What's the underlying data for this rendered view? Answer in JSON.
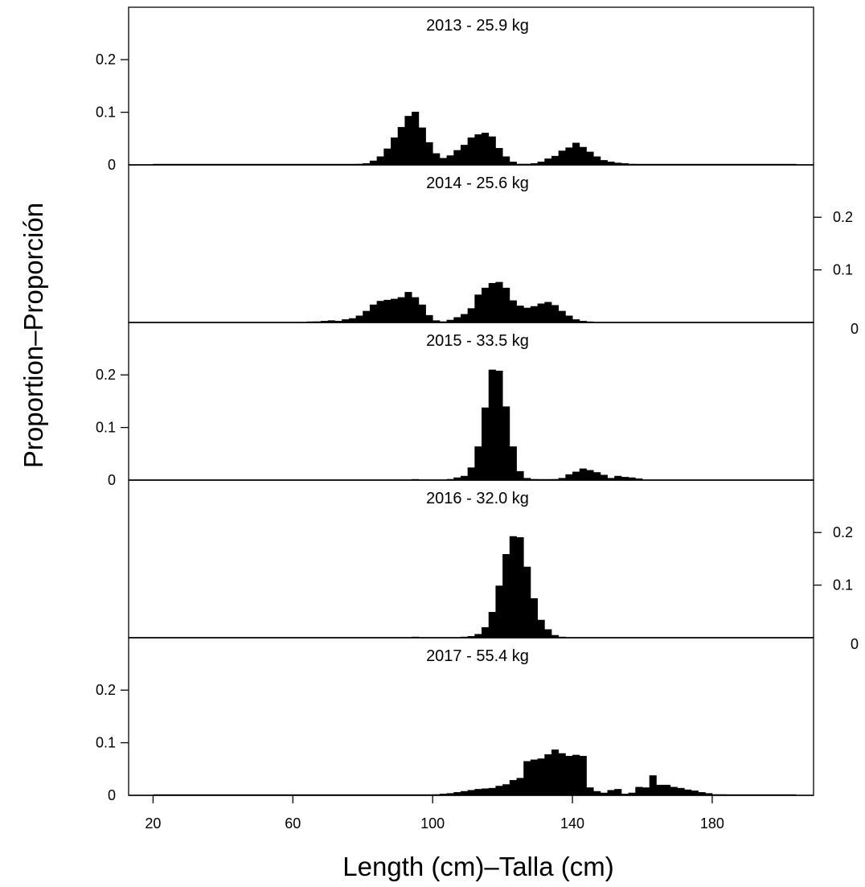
{
  "chart_data": {
    "type": "bar",
    "xlabel": "Length (cm)–Talla (cm)",
    "ylabel": "Proportion–Proporción",
    "xlim": [
      13,
      209
    ],
    "x_ticks": [
      20,
      60,
      100,
      140,
      180
    ],
    "ylim": [
      0,
      0.3
    ],
    "y_ticks": [
      {
        "value": 0,
        "label": "0"
      },
      {
        "value": 0.1,
        "label": "0.1"
      },
      {
        "value": 0.2,
        "label": "0.2"
      }
    ],
    "bin_width": 2,
    "bin_start": 20,
    "panels": [
      {
        "title": "2013 - 25.9 kg",
        "y_axis_side": "left",
        "values": [
          0.001,
          0.001,
          0.001,
          0.001,
          0.001,
          0.001,
          0.001,
          0.001,
          0.001,
          0.001,
          0.001,
          0.001,
          0.001,
          0.001,
          0.001,
          0.001,
          0.001,
          0.001,
          0.001,
          0.001,
          0.001,
          0.001,
          0.001,
          0.001,
          0.001,
          0.001,
          0.001,
          0.001,
          0.001,
          0.002,
          0.003,
          0.008,
          0.016,
          0.031,
          0.052,
          0.072,
          0.093,
          0.101,
          0.071,
          0.043,
          0.022,
          0.013,
          0.018,
          0.028,
          0.038,
          0.052,
          0.058,
          0.061,
          0.054,
          0.032,
          0.016,
          0.006,
          0.002,
          0.002,
          0.003,
          0.006,
          0.012,
          0.017,
          0.027,
          0.033,
          0.042,
          0.034,
          0.025,
          0.016,
          0.009,
          0.006,
          0.004,
          0.003,
          0.002,
          0.001,
          0.001,
          0.001,
          0.001,
          0.001,
          0.001,
          0.001,
          0.001,
          0.001,
          0.001,
          0.001,
          0.001,
          0.001,
          0.001,
          0.001,
          0.001,
          0.001,
          0.001,
          0.001,
          0.001,
          0.001,
          0.001,
          0.001
        ]
      },
      {
        "title": "2014 - 25.6 kg",
        "y_axis_side": "right",
        "values": [
          0,
          0,
          0,
          0,
          0,
          0,
          0,
          0,
          0,
          0,
          0,
          0,
          0,
          0,
          0,
          0,
          0,
          0,
          0,
          0,
          0,
          0,
          0.001,
          0.002,
          0.003,
          0.004,
          0.003,
          0.006,
          0.008,
          0.013,
          0.022,
          0.034,
          0.041,
          0.043,
          0.045,
          0.048,
          0.058,
          0.048,
          0.034,
          0.014,
          0.004,
          0.002,
          0.005,
          0.01,
          0.016,
          0.027,
          0.053,
          0.066,
          0.075,
          0.077,
          0.066,
          0.042,
          0.032,
          0.028,
          0.031,
          0.036,
          0.039,
          0.033,
          0.022,
          0.013,
          0.006,
          0.003,
          0.001,
          0,
          0,
          0,
          0,
          0,
          0,
          0,
          0,
          0,
          0,
          0,
          0,
          0,
          0,
          0,
          0,
          0,
          0,
          0,
          0,
          0,
          0,
          0,
          0,
          0,
          0,
          0,
          0,
          0
        ]
      },
      {
        "title": "2015 - 33.5 kg",
        "y_axis_side": "left",
        "values": [
          0,
          0,
          0,
          0,
          0,
          0,
          0,
          0,
          0,
          0,
          0,
          0,
          0,
          0,
          0,
          0,
          0,
          0,
          0,
          0,
          0,
          0,
          0,
          0,
          0,
          0,
          0,
          0,
          0,
          0,
          0,
          0,
          0,
          0,
          0,
          0,
          0,
          0.001,
          0,
          0,
          0,
          0,
          0.002,
          0.005,
          0.008,
          0.024,
          0.064,
          0.138,
          0.21,
          0.208,
          0.14,
          0.064,
          0.017,
          0.004,
          0.002,
          0.001,
          0.001,
          0.002,
          0.004,
          0.011,
          0.016,
          0.022,
          0.019,
          0.015,
          0.01,
          0.004,
          0.008,
          0.006,
          0.005,
          0.003,
          0,
          0,
          0,
          0,
          0,
          0,
          0,
          0,
          0,
          0,
          0,
          0,
          0,
          0,
          0,
          0,
          0,
          0,
          0,
          0,
          0,
          0
        ]
      },
      {
        "title": "2016 - 32.0 kg",
        "y_axis_side": "right",
        "values": [
          0,
          0,
          0,
          0,
          0,
          0,
          0,
          0,
          0,
          0,
          0,
          0,
          0,
          0,
          0,
          0,
          0,
          0,
          0,
          0,
          0,
          0,
          0,
          0,
          0,
          0,
          0,
          0,
          0,
          0,
          0,
          0,
          0,
          0,
          0,
          0,
          0,
          0.001,
          0,
          0,
          0,
          0,
          0,
          0,
          0.001,
          0.003,
          0.007,
          0.02,
          0.049,
          0.099,
          0.159,
          0.193,
          0.191,
          0.135,
          0.075,
          0.034,
          0.016,
          0.005,
          0.001,
          0,
          0,
          0,
          0,
          0,
          0,
          0,
          0,
          0,
          0,
          0,
          0,
          0,
          0,
          0,
          0,
          0,
          0,
          0,
          0,
          0,
          0,
          0,
          0,
          0,
          0,
          0,
          0,
          0,
          0,
          0,
          0,
          0
        ]
      },
      {
        "title": "2017 - 55.4 kg",
        "y_axis_side": "left",
        "values": [
          0.001,
          0.001,
          0.001,
          0.001,
          0.001,
          0.001,
          0.001,
          0.001,
          0.001,
          0.001,
          0.001,
          0.001,
          0.001,
          0.001,
          0.001,
          0.001,
          0.001,
          0.001,
          0.001,
          0.001,
          0.001,
          0.001,
          0.001,
          0.001,
          0.001,
          0.001,
          0.001,
          0.001,
          0.001,
          0.001,
          0.001,
          0.001,
          0.001,
          0.001,
          0.001,
          0.001,
          0.001,
          0.001,
          0.001,
          0.001,
          0.002,
          0.003,
          0.004,
          0.006,
          0.008,
          0.01,
          0.012,
          0.013,
          0.014,
          0.018,
          0.021,
          0.029,
          0.033,
          0.065,
          0.068,
          0.07,
          0.078,
          0.087,
          0.08,
          0.075,
          0.077,
          0.075,
          0.015,
          0.008,
          0.005,
          0.01,
          0.012,
          0.003,
          0.005,
          0.016,
          0.015,
          0.038,
          0.02,
          0.02,
          0.016,
          0.014,
          0.011,
          0.009,
          0.006,
          0.004,
          0.002,
          0.002,
          0.001,
          0.001,
          0.001,
          0.001,
          0.001,
          0.001,
          0.001,
          0.001,
          0.001,
          0.001
        ]
      }
    ]
  }
}
